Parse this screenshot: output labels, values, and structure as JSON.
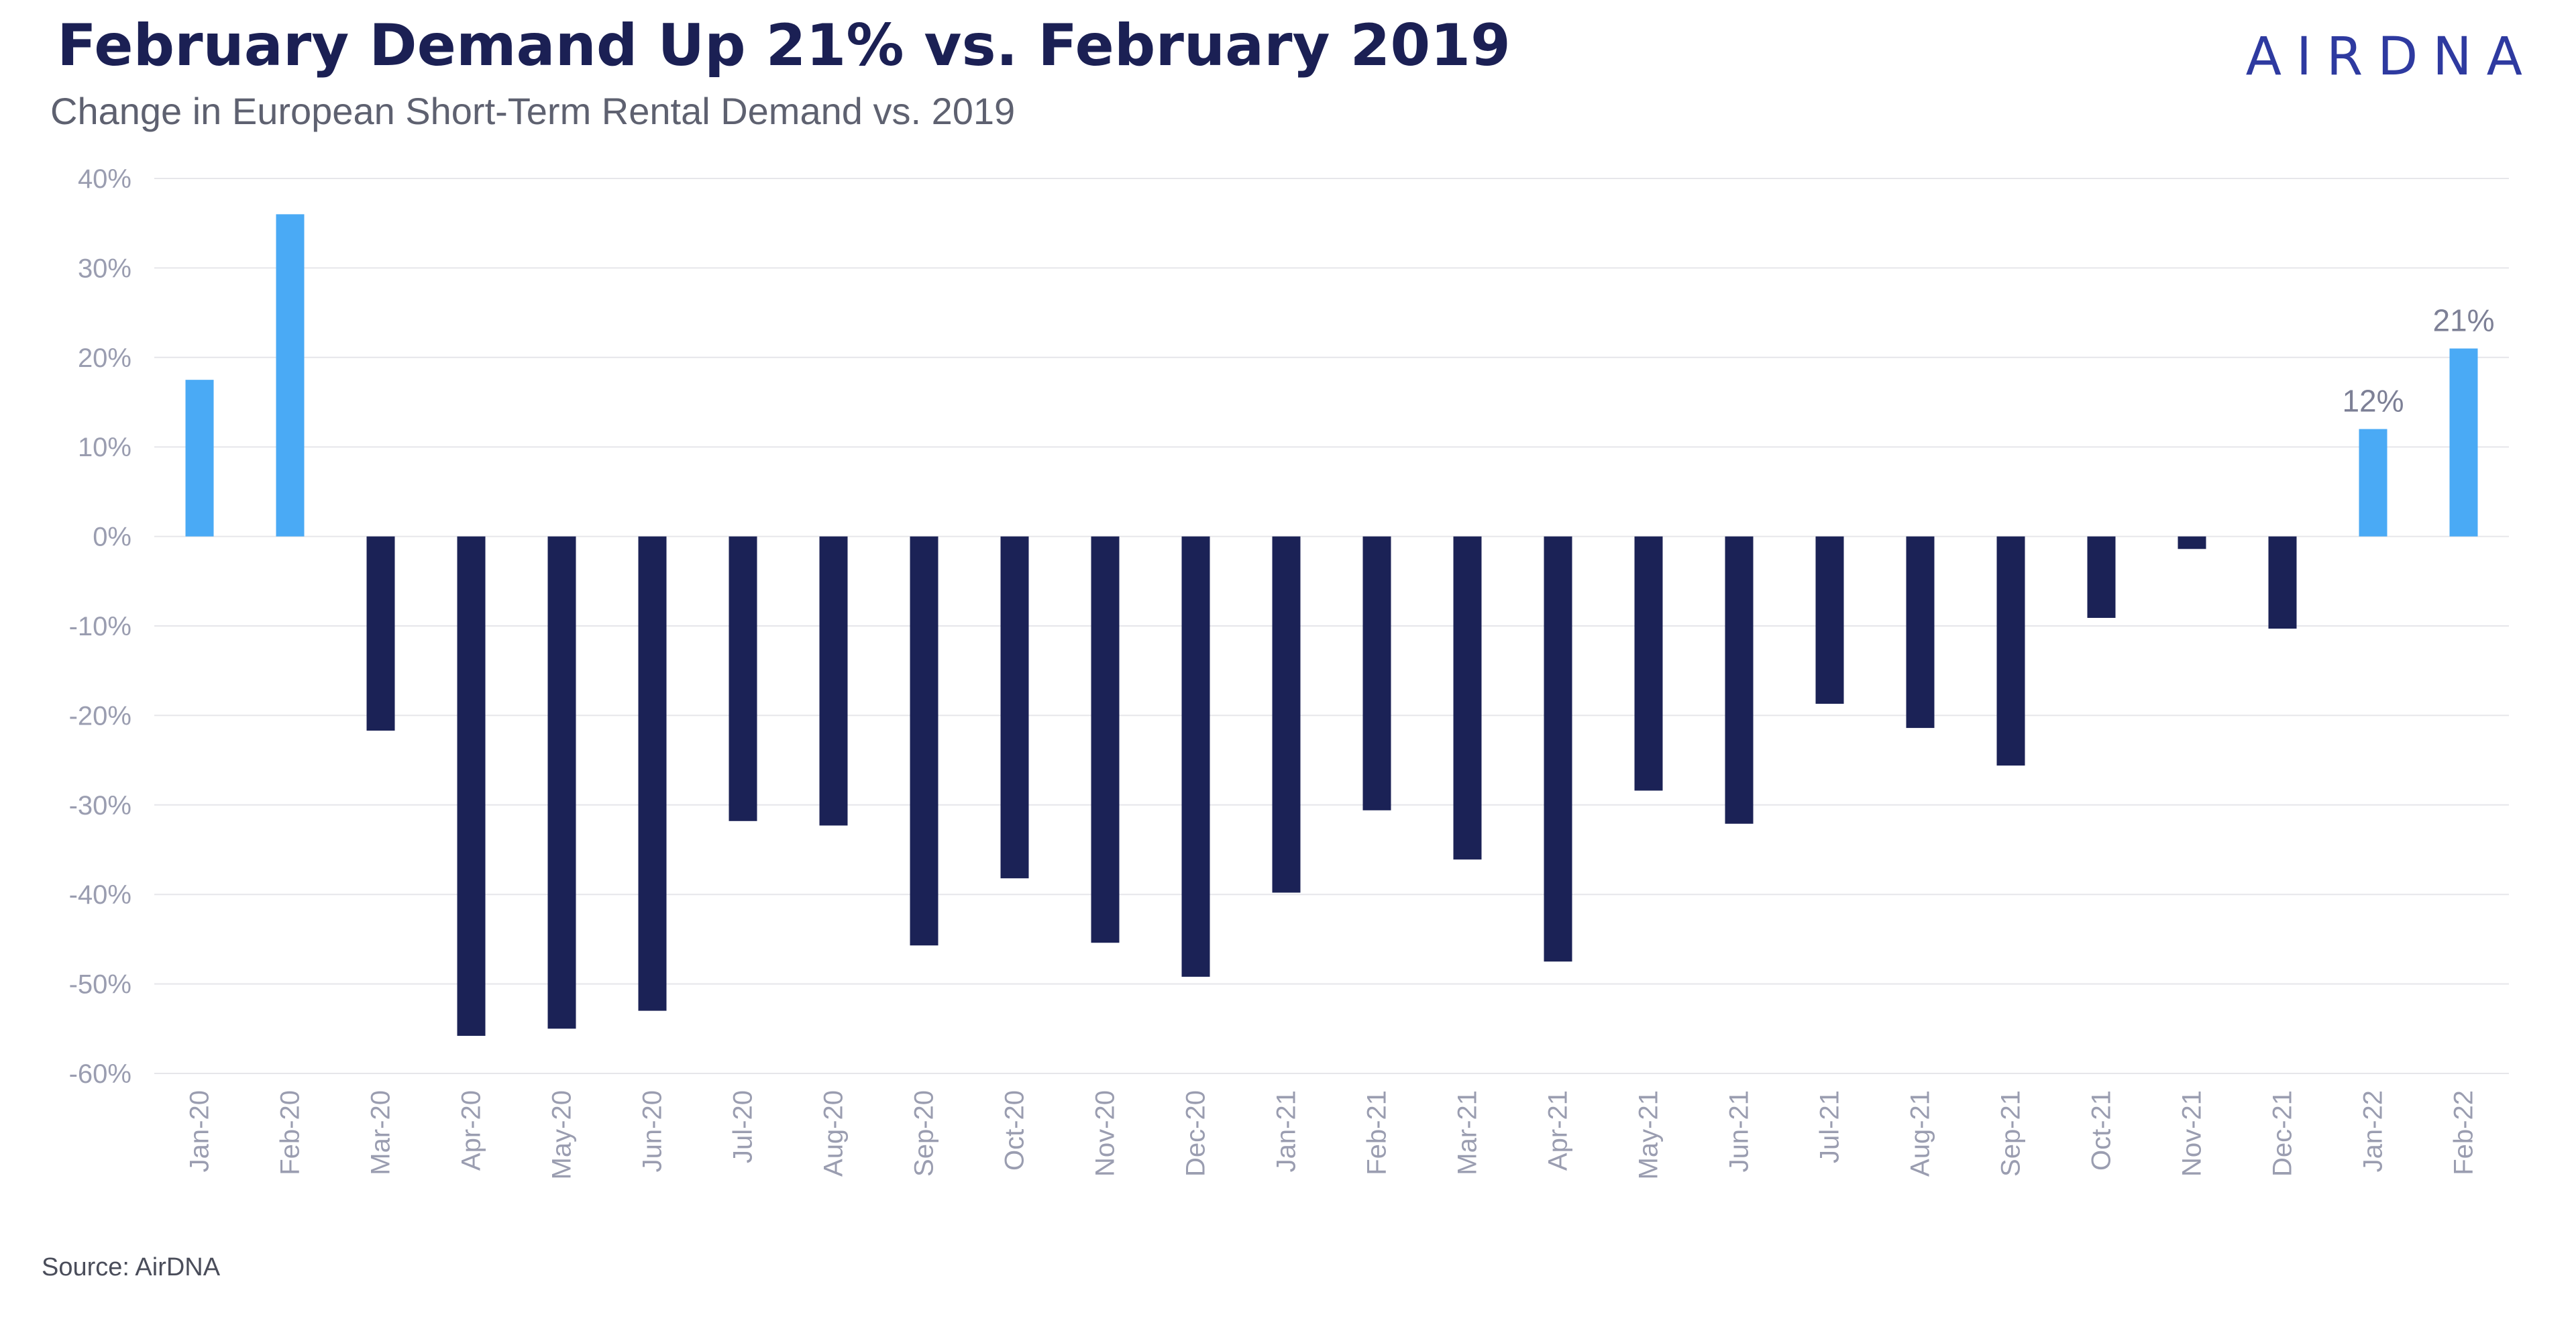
{
  "header": {
    "title": "February Demand Up 21% vs. February 2019",
    "subtitle": "Change in European Short-Term Rental Demand vs. 2019",
    "logo_text": "AIRDNA"
  },
  "footer": {
    "source": "Source: AirDNA"
  },
  "colors": {
    "positive_bar": "#4aaaf5",
    "negative_bar": "#1b2256",
    "gridline": "#e6e6ea",
    "axis_text": "#9a9db0",
    "title": "#1b2054",
    "logo": "#2e3aa0"
  },
  "chart_data": {
    "type": "bar",
    "title": "February Demand Up 21% vs. February 2019",
    "subtitle": "Change in European Short-Term Rental Demand vs. 2019",
    "xlabel": "",
    "ylabel": "",
    "ylim": [
      -60,
      40
    ],
    "yticks": [
      40,
      30,
      20,
      10,
      0,
      -10,
      -20,
      -30,
      -40,
      -50,
      -60
    ],
    "ytick_labels": [
      "40%",
      "30%",
      "20%",
      "10%",
      "0%",
      "-10%",
      "-20%",
      "-30%",
      "-40%",
      "-50%",
      "-60%"
    ],
    "grid": true,
    "categories": [
      "Jan-20",
      "Feb-20",
      "Mar-20",
      "Apr-20",
      "May-20",
      "Jun-20",
      "Jul-20",
      "Aug-20",
      "Sep-20",
      "Oct-20",
      "Nov-20",
      "Dec-20",
      "Jan-21",
      "Feb-21",
      "Mar-21",
      "Apr-21",
      "May-21",
      "Jun-21",
      "Jul-21",
      "Aug-21",
      "Sep-21",
      "Oct-21",
      "Nov-21",
      "Dec-21",
      "Jan-22",
      "Feb-22"
    ],
    "values": [
      17.5,
      36,
      -21.7,
      -55.8,
      -55,
      -53,
      -31.8,
      -32.3,
      -45.7,
      -38.2,
      -45.4,
      -49.2,
      -39.8,
      -30.6,
      -36.1,
      -47.5,
      -28.4,
      -32.1,
      -18.7,
      -21.4,
      -25.6,
      -9.1,
      -1.4,
      -10.3,
      12,
      21
    ],
    "data_labels": [
      {
        "category": "Jan-22",
        "text": "12%"
      },
      {
        "category": "Feb-22",
        "text": "21%"
      }
    ]
  }
}
